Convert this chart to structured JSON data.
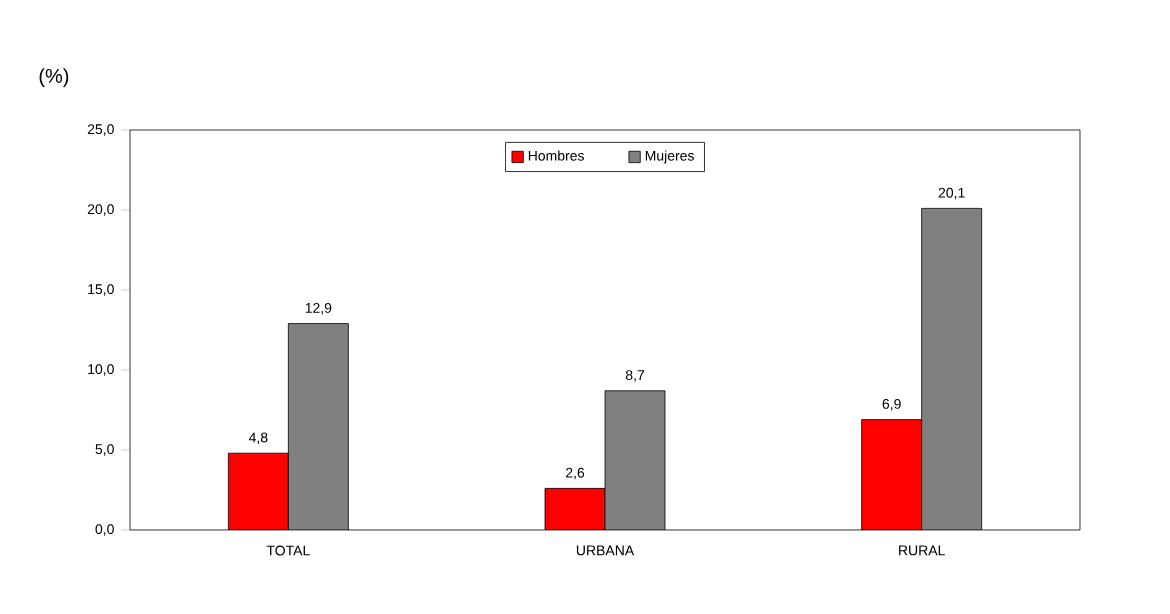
{
  "chart_data": {
    "type": "bar",
    "ylabel": "(%)",
    "categories": [
      "TOTAL",
      "URBANA",
      "RURAL"
    ],
    "series": [
      {
        "name": "Hombres",
        "color": "#ff0000",
        "values": [
          4.8,
          2.6,
          6.9
        ],
        "value_labels": [
          "4,8",
          "2,6",
          "6,9"
        ]
      },
      {
        "name": "Mujeres",
        "color": "#808080",
        "values": [
          12.9,
          8.7,
          20.1
        ],
        "value_labels": [
          "12,9",
          "8,7",
          "20,1"
        ]
      }
    ],
    "ylim": [
      0,
      25
    ],
    "yticks": [
      {
        "value": 0,
        "label": "0,0"
      },
      {
        "value": 5,
        "label": "5,0"
      },
      {
        "value": 10,
        "label": "10,0"
      },
      {
        "value": 15,
        "label": "15,0"
      },
      {
        "value": 20,
        "label": "20,0"
      },
      {
        "value": 25,
        "label": "25,0"
      }
    ],
    "legend": "top",
    "grid": false
  }
}
